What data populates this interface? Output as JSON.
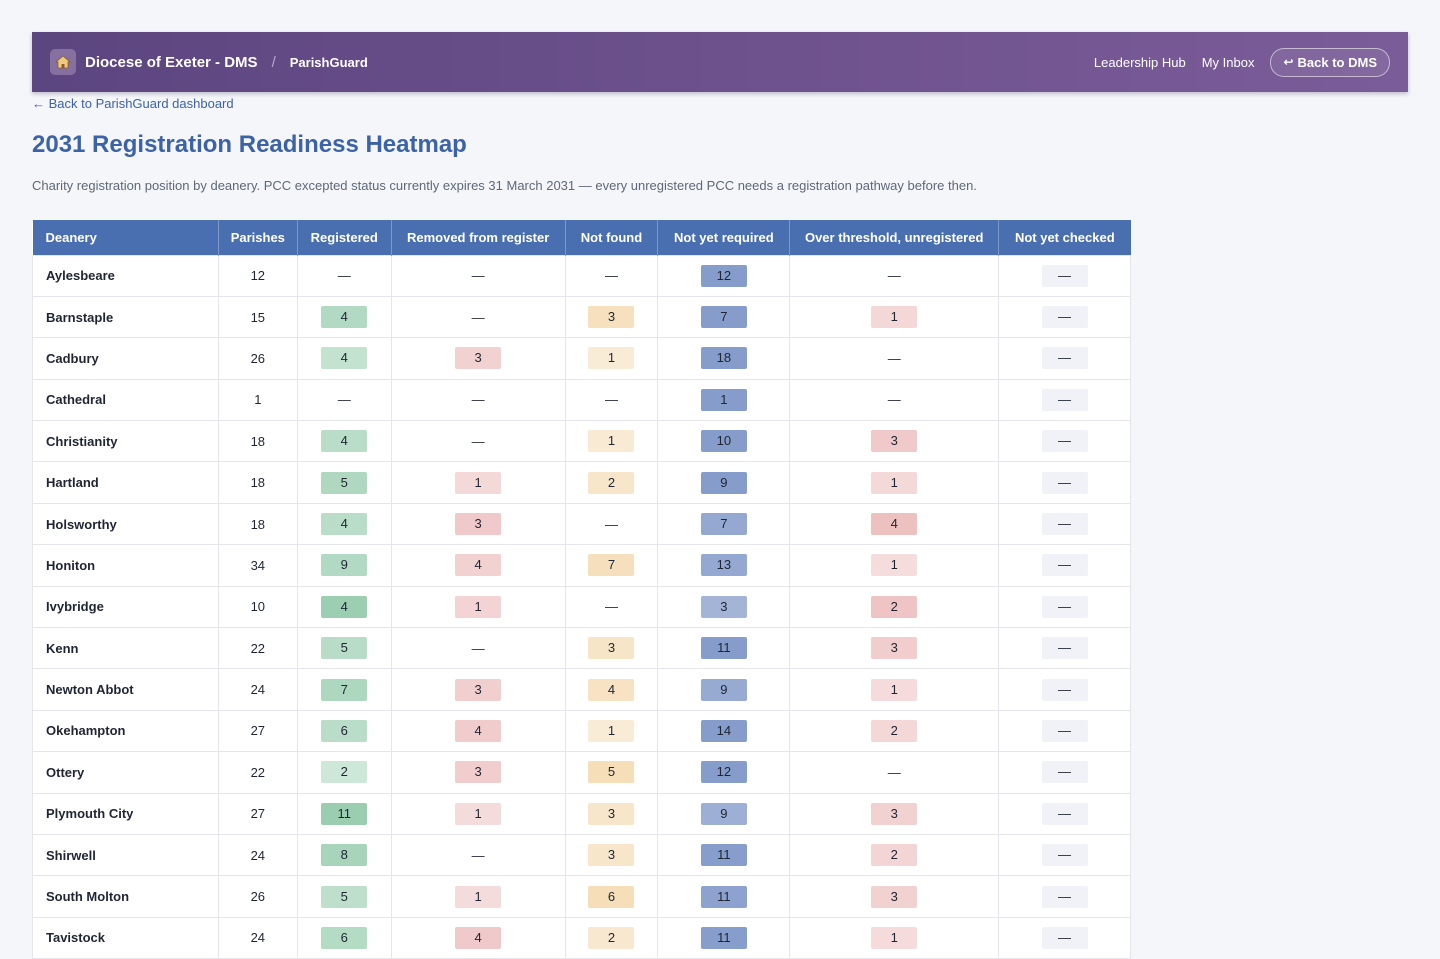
{
  "header": {
    "brand": "Diocese of Exeter - DMS",
    "separator": "/",
    "app_name": "ParishGuard",
    "nav": [
      "Leadership Hub",
      "My Inbox"
    ],
    "back_button": "Back to DMS"
  },
  "back_link": "← Back to ParishGuard dashboard",
  "page_title": "2031 Registration Readiness Heatmap",
  "subtitle": "Charity registration position by deanery. PCC excepted status currently expires 31 March 2031 — every unregistered PCC needs a registration pathway before then.",
  "table": {
    "columns": [
      "Deanery",
      "Parishes",
      "Registered",
      "Removed from register",
      "Not found",
      "Not yet required",
      "Over threshold, unregistered",
      "Not yet checked"
    ],
    "empty_symbol": "—",
    "rows": [
      [
        "Aylesbeare",
        12,
        null,
        null,
        null,
        12,
        null,
        null
      ],
      [
        "Barnstaple",
        15,
        4,
        null,
        3,
        7,
        1,
        null
      ],
      [
        "Cadbury",
        26,
        4,
        3,
        1,
        18,
        null,
        null
      ],
      [
        "Cathedral",
        1,
        null,
        null,
        null,
        1,
        null,
        null
      ],
      [
        "Christianity",
        18,
        4,
        null,
        1,
        10,
        3,
        null
      ],
      [
        "Hartland",
        18,
        5,
        1,
        2,
        9,
        1,
        null
      ],
      [
        "Holsworthy",
        18,
        4,
        3,
        null,
        7,
        4,
        null
      ],
      [
        "Honiton",
        34,
        9,
        4,
        7,
        13,
        1,
        null
      ],
      [
        "Ivybridge",
        10,
        4,
        1,
        null,
        3,
        2,
        null
      ],
      [
        "Kenn",
        22,
        5,
        null,
        3,
        11,
        3,
        null
      ],
      [
        "Newton Abbot",
        24,
        7,
        3,
        4,
        9,
        1,
        null
      ],
      [
        "Okehampton",
        27,
        6,
        4,
        1,
        14,
        2,
        null
      ],
      [
        "Ottery",
        22,
        2,
        3,
        5,
        12,
        null,
        null
      ],
      [
        "Plymouth City",
        27,
        11,
        1,
        3,
        9,
        3,
        null
      ],
      [
        "Shirwell",
        24,
        8,
        null,
        3,
        11,
        2,
        null
      ],
      [
        "South Molton",
        26,
        5,
        1,
        6,
        11,
        3,
        null
      ],
      [
        "Tavistock",
        24,
        6,
        4,
        2,
        11,
        1,
        null
      ]
    ]
  },
  "colors": {
    "header_bar": "#6e528e",
    "table_header": "#4a6fb0",
    "title": "#3d63a7",
    "registered_scale": "#8cc7a5",
    "removed_scale": "#e39a9a",
    "not_found_scale": "#efc98d",
    "not_yet_required_scale": "#7f97c8",
    "over_threshold_scale": "#e39a9a",
    "not_yet_checked": "#f0f2f7"
  }
}
